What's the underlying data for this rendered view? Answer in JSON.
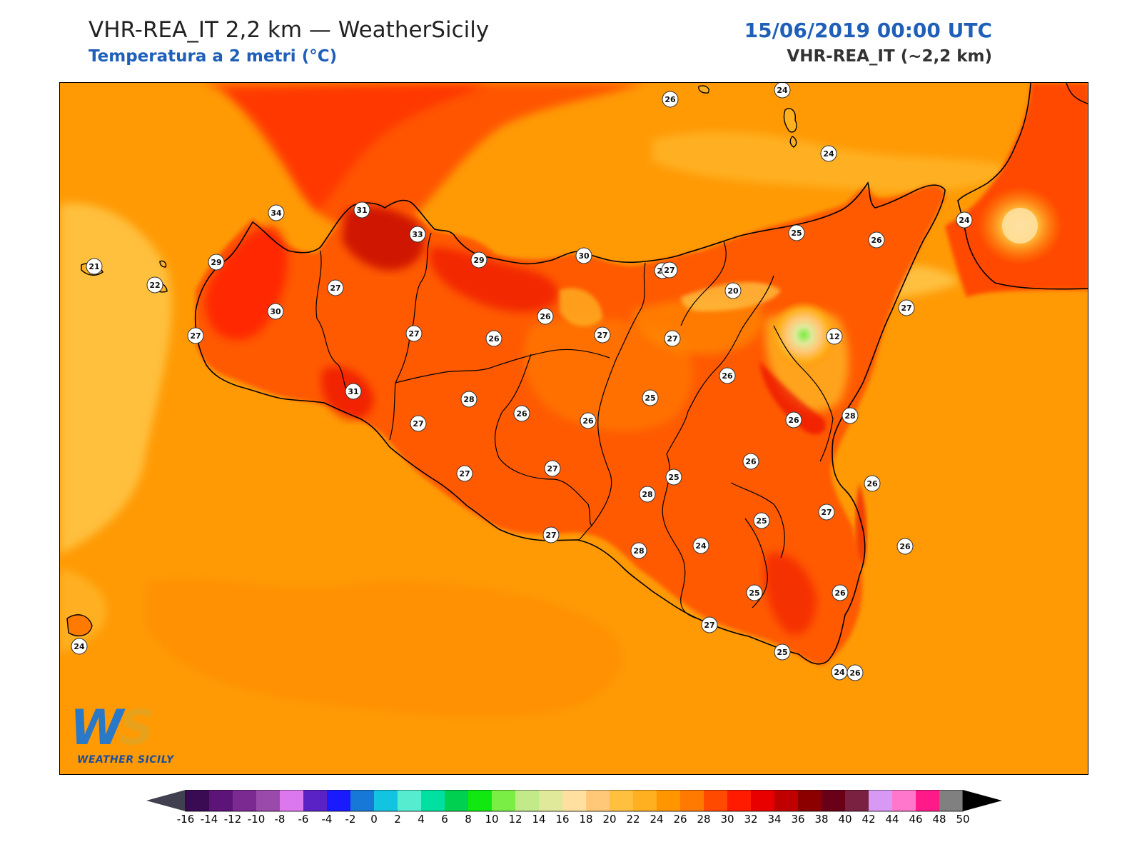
{
  "header": {
    "title": "VHR-REA_IT 2,2 km — WeatherSicily",
    "subtitle": "Temperatura a 2 metri (°C)",
    "datetime": "15/06/2019 00:00 UTC",
    "model": "VHR-REA_IT (~2,2 km)"
  },
  "logo": {
    "mark": "WS",
    "text": "WEATHER SICILY"
  },
  "map": {
    "region": "Sicily",
    "station_values": [
      "26",
      "24",
      "24",
      "24",
      "25",
      "26",
      "34",
      "31",
      "33",
      "29",
      "30",
      "27",
      "21",
      "22",
      "29",
      "27",
      "30",
      "27",
      "26",
      "27",
      "27",
      "20",
      "27",
      "26",
      "27",
      "27",
      "26",
      "12",
      "28",
      "31",
      "28",
      "27",
      "26",
      "26",
      "25",
      "26",
      "26",
      "28",
      "27",
      "27",
      "25",
      "26",
      "27",
      "27",
      "25",
      "26",
      "24",
      "28",
      "26",
      "25",
      "27",
      "25",
      "26",
      "24",
      "24"
    ]
  },
  "colorbar": {
    "ticks": [
      "-16",
      "-14",
      "-12",
      "-10",
      "-8",
      "-6",
      "-4",
      "-2",
      "0",
      "2",
      "4",
      "6",
      "8",
      "10",
      "12",
      "14",
      "16",
      "18",
      "20",
      "22",
      "24",
      "26",
      "28",
      "30",
      "32",
      "34",
      "36",
      "38",
      "40",
      "42",
      "44",
      "46",
      "48",
      "50"
    ],
    "colors": [
      "#3a0a52",
      "#5c1478",
      "#7b2a92",
      "#9a4aaa",
      "#dd77ee",
      "#5a22c4",
      "#1a1aff",
      "#1878d8",
      "#12c4e0",
      "#56ecd0",
      "#00e0a0",
      "#00d050",
      "#10e810",
      "#7aee44",
      "#c2ea88",
      "#e0e89a",
      "#ffe0a0",
      "#ffc878",
      "#ffc040",
      "#ffb020",
      "#ff9600",
      "#ff7a00",
      "#ff4a00",
      "#ff1a00",
      "#e80000",
      "#c00000",
      "#8c0000",
      "#6a0018",
      "#7a2040",
      "#d899f5",
      "#ff77cc",
      "#ff1a8a",
      "#808080",
      "#3a3a3a"
    ],
    "min_color": "#404050",
    "max_color": "#000000"
  }
}
